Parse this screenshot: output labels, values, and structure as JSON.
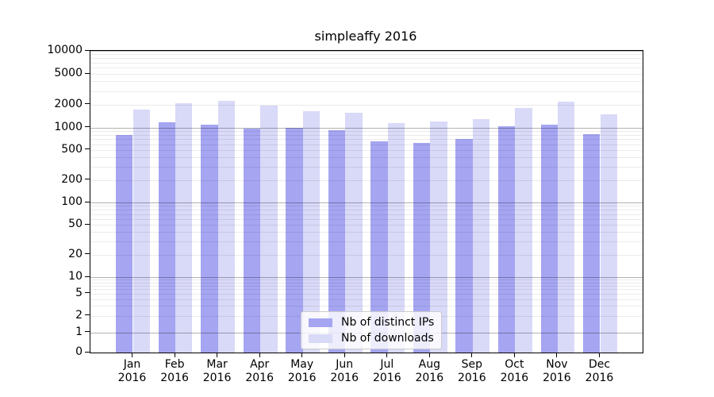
{
  "title": "simpleaffy 2016",
  "year_label": "2016",
  "colors": {
    "ips_bar": "#a5a5f2",
    "downloads_bar": "#d9d9f8",
    "axis": "#000000",
    "legend_border": "#cccccc",
    "grid_minor": "#e9e9e9",
    "grid_major": "#b3b3b3",
    "background": "#ffffff"
  },
  "chart_data": {
    "type": "bar",
    "title": "simpleaffy 2016",
    "xlabel": "",
    "ylabel": "",
    "categories": [
      "Jan",
      "Feb",
      "Mar",
      "Apr",
      "May",
      "Jun",
      "Jul",
      "Aug",
      "Sep",
      "Oct",
      "Nov",
      "Dec"
    ],
    "category_year": "2016",
    "series": [
      {
        "name": "Nb of distinct IPs",
        "color": "#a5a5f2",
        "values": [
          800,
          1160,
          1100,
          960,
          1000,
          920,
          660,
          630,
          700,
          1040,
          1080,
          820
        ]
      },
      {
        "name": "Nb of downloads",
        "color": "#d9d9f8",
        "values": [
          1700,
          2060,
          2230,
          1930,
          1650,
          1575,
          1130,
          1185,
          1285,
          1815,
          2150,
          1470
        ]
      }
    ],
    "yscale": "log-with-zero",
    "ylim": [
      0,
      10000
    ],
    "yticks": [
      0,
      1,
      2,
      5,
      10,
      20,
      50,
      100,
      200,
      500,
      1000,
      2000,
      5000,
      10000
    ],
    "grid": true,
    "legend_position": "lower-center-inside",
    "legend_entries": [
      "Nb of distinct IPs",
      "Nb of downloads"
    ]
  }
}
